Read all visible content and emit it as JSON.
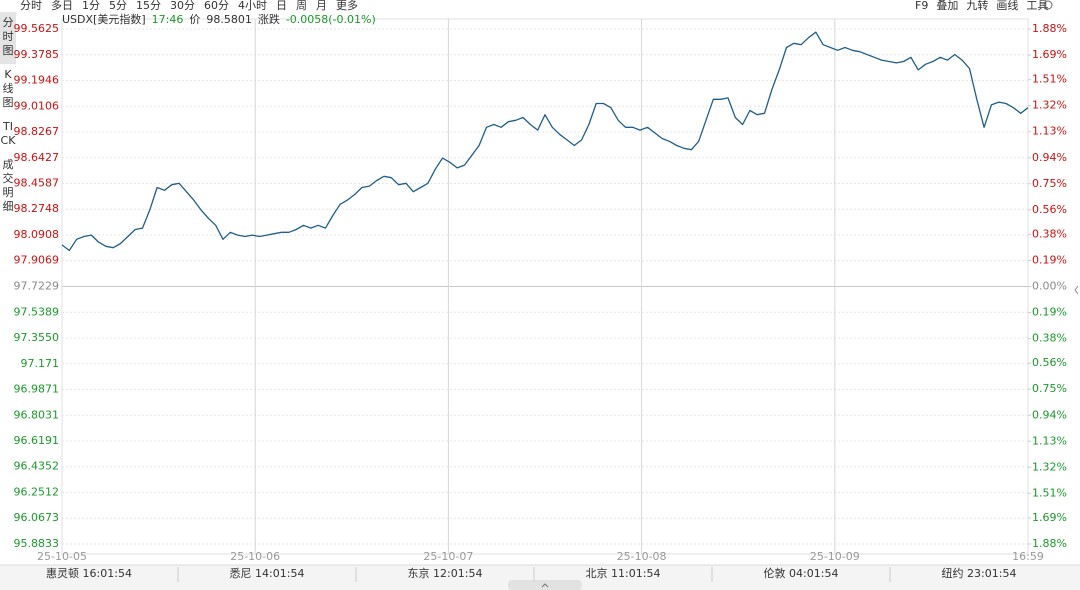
{
  "toolbar": {
    "periods": [
      "分时",
      "多日",
      "1分",
      "5分",
      "15分",
      "30分",
      "60分",
      "4小时",
      "日",
      "周",
      "月",
      "更多"
    ],
    "tools": [
      "F9",
      "叠加",
      "九转",
      "画线",
      "工具"
    ]
  },
  "sidebar": [
    "分时图",
    "K线图",
    "TICK",
    "成交明细"
  ],
  "quote": {
    "symbol": "USDX[美元指数]",
    "time": "17:46",
    "price_label": "价",
    "price": 98.5801,
    "change_label": "涨跌",
    "change": "-0.0058(-0.01%)"
  },
  "chart_data": {
    "type": "line",
    "color": "#1f5f8b",
    "grid": true,
    "up_color": "#cc1111",
    "down_color": "#1a9a2a",
    "flat_color": "#8a8a8a",
    "x_labels": [
      "25-10-05",
      "25-10-06",
      "25-10-07",
      "25-10-08",
      "25-10-09",
      "16:59"
    ],
    "values": [
      98.02,
      97.98,
      98.06,
      98.08,
      98.09,
      98.04,
      98.01,
      98.0,
      98.03,
      98.08,
      98.13,
      98.14,
      98.27,
      98.43,
      98.41,
      98.45,
      98.46,
      98.4,
      98.34,
      98.27,
      98.21,
      98.16,
      98.06,
      98.11,
      98.09,
      98.08,
      98.09,
      98.08,
      98.09,
      98.1,
      98.11,
      98.11,
      98.13,
      98.16,
      98.14,
      98.16,
      98.14,
      98.23,
      98.31,
      98.34,
      98.38,
      98.43,
      98.44,
      98.48,
      98.51,
      98.5,
      98.45,
      98.46,
      98.4,
      98.43,
      98.46,
      98.56,
      98.64,
      98.61,
      98.57,
      98.59,
      98.66,
      98.73,
      98.86,
      98.88,
      98.86,
      98.9,
      98.91,
      98.93,
      98.88,
      98.84,
      98.95,
      98.86,
      98.81,
      98.77,
      98.73,
      98.77,
      98.88,
      99.03,
      99.03,
      99.0,
      98.91,
      98.86,
      98.86,
      98.84,
      98.86,
      98.82,
      98.78,
      98.76,
      98.73,
      98.71,
      98.7,
      98.76,
      98.91,
      99.06,
      99.06,
      99.07,
      98.93,
      98.88,
      98.98,
      98.95,
      98.96,
      99.13,
      99.27,
      99.43,
      99.46,
      99.45,
      99.5,
      99.54,
      99.45,
      99.43,
      99.41,
      99.43,
      99.41,
      99.4,
      99.38,
      99.36,
      99.34,
      99.33,
      99.32,
      99.33,
      99.36,
      99.27,
      99.31,
      99.33,
      99.36,
      99.34,
      99.38,
      99.34,
      99.28,
      99.06,
      98.86,
      99.02,
      99.04,
      99.03,
      99.0,
      98.96,
      99.0
    ],
    "ylim": [
      95.8833,
      99.5625
    ],
    "yticks": [
      99.5625,
      99.3785,
      99.1946,
      99.0106,
      98.8267,
      98.6427,
      98.4587,
      98.2748,
      98.0908,
      97.9069,
      97.7229,
      97.5389,
      {
        "value": 97.355,
        "label": "97.3550"
      },
      97.171,
      96.9871,
      96.8031,
      96.6191,
      96.4352,
      96.2512,
      96.0673,
      95.8833
    ],
    "y2lim": [
      -1.88,
      1.88
    ],
    "y2ticks": [
      {
        "value": 1.88,
        "label": "1.88%"
      },
      {
        "value": 1.69,
        "label": "1.69%"
      },
      {
        "value": 1.51,
        "label": "1.51%"
      },
      {
        "value": 1.32,
        "label": "1.32%"
      },
      {
        "value": 1.13,
        "label": "1.13%"
      },
      {
        "value": 0.94,
        "label": "0.94%"
      },
      {
        "value": 0.75,
        "label": "0.75%"
      },
      {
        "value": 0.56,
        "label": "0.56%"
      },
      {
        "value": 0.38,
        "label": "0.38%"
      },
      {
        "value": 0.19,
        "label": "0.19%"
      },
      {
        "value": 0,
        "label": "0.00%"
      },
      {
        "value": -0.19,
        "label": "0.19%"
      },
      {
        "value": -0.38,
        "label": "0.38%"
      },
      {
        "value": -0.56,
        "label": "0.56%"
      },
      {
        "value": -0.75,
        "label": "0.75%"
      },
      {
        "value": -0.94,
        "label": "0.94%"
      },
      {
        "value": -1.13,
        "label": "1.13%"
      },
      {
        "value": -1.32,
        "label": "1.32%"
      },
      {
        "value": -1.51,
        "label": "1.51%"
      },
      {
        "value": -1.69,
        "label": "1.69%"
      },
      {
        "value": -1.88,
        "label": "1.88%"
      }
    ]
  },
  "clocks": [
    "惠灵顿 16:01:54",
    "悉尼 14:01:54",
    "东京 12:01:54",
    "北京 11:01:54",
    "伦敦 04:01:54",
    "纽约 23:01:54"
  ]
}
